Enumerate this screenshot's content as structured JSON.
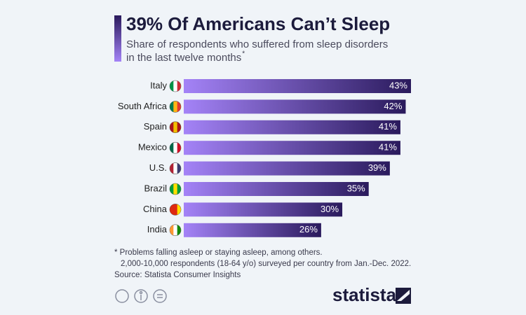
{
  "chart_data": {
    "type": "bar",
    "orientation": "horizontal",
    "title": "39% Of Americans Can’t Sleep",
    "subtitle": [
      "Share of respondents who suffered from sleep disorders",
      "in the last twelve months"
    ],
    "subtitle_marker": "*",
    "categories": [
      "Italy",
      "South Africa",
      "Spain",
      "Mexico",
      "U.S.",
      "Brazil",
      "China",
      "India"
    ],
    "values": [
      43,
      42,
      41,
      41,
      39,
      35,
      30,
      26
    ],
    "value_labels": [
      "43%",
      "42%",
      "41%",
      "41%",
      "39%",
      "35%",
      "30%",
      "26%"
    ],
    "color_start": "#a483f7",
    "color_end": "#2a1a5c",
    "footnote": [
      "* Problems falling asleep or staying asleep, among others.",
      "2,000-10,000 respondents (18-64 y/o) surveyed per country from Jan.-Dec. 2022."
    ],
    "source": "Source: Statista Consumer Insights",
    "brand": "statista"
  }
}
